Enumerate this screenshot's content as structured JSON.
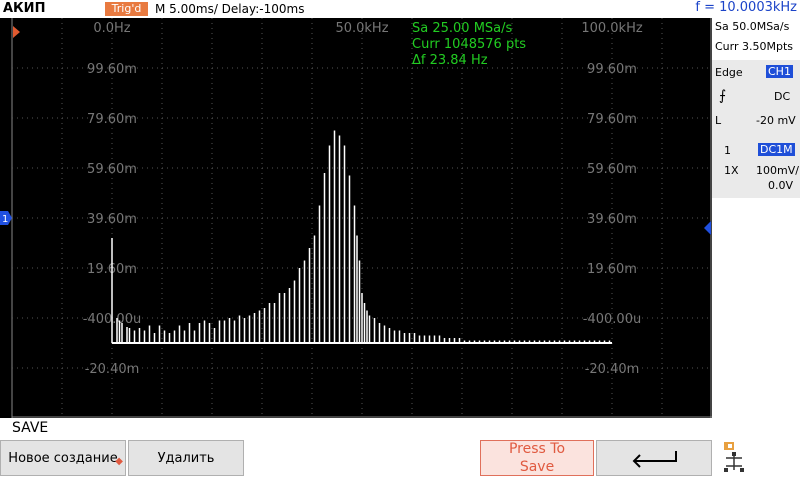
{
  "topbar": {
    "brand": "АКИП",
    "trig_status": "Trig'd",
    "timebase": "M 5.00ms/ Delay:-100ms",
    "frequency": "f = 10.0003kHz"
  },
  "fft": {
    "x_labels": [
      "0.0Hz",
      "50.0kHz",
      "100.0kHz"
    ],
    "sample_rate": "Sa 25.00 MSa/s",
    "points": "Curr 1048576 pts",
    "resolution": "Δf 23.84 Hz",
    "y_labels": [
      "99.60m",
      "79.60m",
      "59.60m",
      "39.60m",
      "19.60m",
      "-400.00u",
      "-20.40m"
    ],
    "channel_marker": "1"
  },
  "chart_data": {
    "type": "bar",
    "xlabel": "",
    "ylabel": "",
    "xlim_hz": [
      0,
      100000
    ],
    "ylim": [
      -0.0304,
      0.1096
    ],
    "grid": true,
    "series": [
      {
        "x_hz": [
          0,
          1000,
          1500,
          2000,
          3000,
          3500,
          4500,
          5500,
          6500,
          7500,
          8500,
          9500,
          10500,
          11500,
          12500,
          13500,
          14500,
          15500,
          16500,
          17500,
          18500,
          19500,
          20500,
          21500,
          22500,
          23500,
          24500,
          25500,
          26500,
          27500,
          28500,
          29500,
          30500,
          31500,
          32500,
          33500,
          34500,
          35500,
          36500,
          37500,
          38500,
          39500,
          40500,
          41500,
          42500,
          43500,
          44500,
          45500,
          46500,
          47500,
          48500,
          49000,
          49500,
          50000,
          50500,
          51000,
          51500,
          52500,
          53500,
          54500,
          55500,
          56500,
          57500,
          58500,
          59500,
          60500,
          61500,
          62500,
          63500,
          64500,
          65500,
          66500,
          67500,
          68500,
          69500,
          70500,
          71500,
          72500,
          73500,
          74500,
          75500,
          76500,
          77500,
          78500,
          79500,
          80500,
          81500,
          82500,
          83500,
          84500,
          85500,
          86500,
          87500,
          88500,
          89500,
          90500,
          91500,
          92500,
          93500,
          94500,
          95500,
          96500,
          97500,
          98500,
          99500
        ],
        "values": [
          0.0416,
          0.0096,
          0.0086,
          0.0076,
          0.006,
          0.0056,
          0.0046,
          0.0056,
          0.0046,
          0.0066,
          0.0036,
          0.0066,
          0.0046,
          0.0036,
          0.0046,
          0.0066,
          0.0046,
          0.0076,
          0.0046,
          0.0076,
          0.0086,
          0.0076,
          0.0056,
          0.0086,
          0.0086,
          0.0096,
          0.0086,
          0.0106,
          0.0096,
          0.0106,
          0.0116,
          0.0126,
          0.0136,
          0.0156,
          0.0156,
          0.0196,
          0.0196,
          0.0216,
          0.0246,
          0.0296,
          0.0326,
          0.0376,
          0.0426,
          0.0546,
          0.0676,
          0.0786,
          0.0846,
          0.0826,
          0.0786,
          0.0666,
          0.0546,
          0.0426,
          0.0326,
          0.0196,
          0.0156,
          0.0126,
          0.0106,
          0.0096,
          0.0076,
          0.0066,
          0.0056,
          0.0046,
          0.0046,
          0.0036,
          0.0036,
          0.0036,
          0.0026,
          0.0026,
          0.0026,
          0.0026,
          0.0026,
          0.0016,
          0.0016,
          0.0016,
          0.0016,
          0.0006,
          0.0006,
          0.0006,
          0.0006,
          0.0006,
          0.0006,
          0.0006,
          0.0006,
          0.0006,
          0.0006,
          0.0006,
          0.0006,
          0.0006,
          0.0006,
          0.0006,
          0.0006,
          0.0006,
          0.0006,
          0.0006,
          0.0006,
          0.0006,
          0.0006,
          0.0006,
          0.0006,
          0.0006,
          0.0006,
          0.0006,
          0.0006,
          0.0006,
          0.0006
        ]
      }
    ]
  },
  "sidebar": {
    "sample_rate": "Sa 50.0MSa/s",
    "memory": "Curr 3.50Mpts",
    "trigger_type": "Edge",
    "trigger_source": "CH1",
    "coupling": "DC",
    "level_label": "L",
    "level_value": "-20 mV",
    "channel_num": "1",
    "channel_coupling": "DC1M",
    "probe": "1X",
    "scale": "100mV/",
    "offset": "0.0V"
  },
  "menu": {
    "title": "SAVE",
    "buttons": [
      "Новое создание",
      "Удалить",
      "Press To Save"
    ]
  },
  "colors": {
    "trace": "#ffffff",
    "fft_text": "#22cc22",
    "accent": "#1f4fd8",
    "trig_bg": "#e87a40"
  }
}
